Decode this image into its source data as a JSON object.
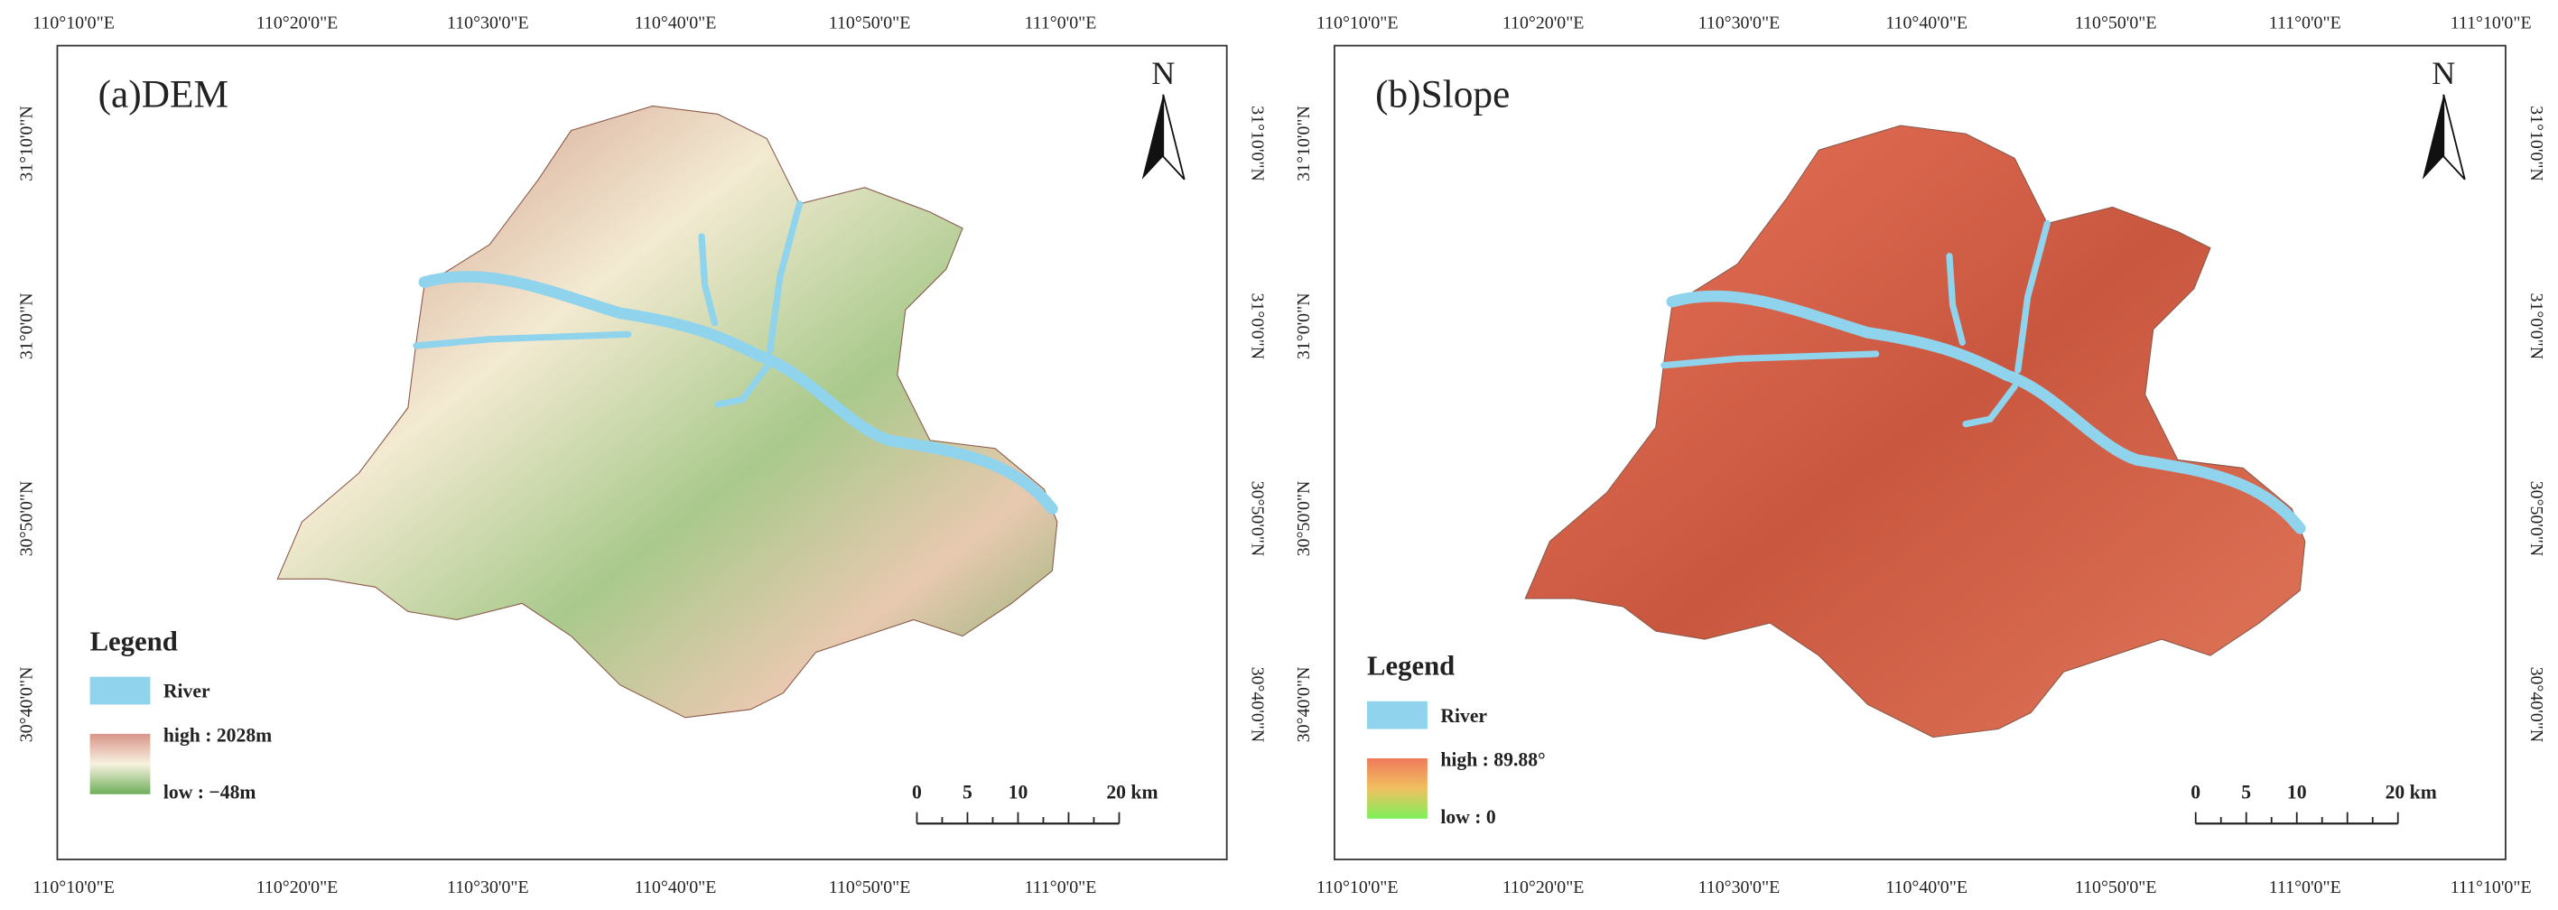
{
  "panels": [
    {
      "title": "(a)DEM",
      "top_labels": [
        "110°10'0\"E",
        "110°20'0\"E",
        "110°30'0\"E",
        "110°40'0\"E",
        "110°50'0\"E",
        "111°0'0\"E"
      ],
      "bottom_labels": [
        "110°10'0\"E",
        "110°20'0\"E",
        "110°30'0\"E",
        "110°40'0\"E",
        "110°50'0\"E",
        "111°0'0\"E"
      ],
      "left_labels": [
        "31°10'0\"N",
        "31°0'0\"N",
        "30°50'0\"N",
        "30°40'0\"N"
      ],
      "right_labels": [
        "31°10'0\"N",
        "31°0'0\"N",
        "30°50'0\"N",
        "30°40'0\"N"
      ],
      "north": "N",
      "legend": {
        "title": "Legend",
        "river": "River",
        "high": "high : 2028m",
        "low": "low : −48m"
      },
      "scale": [
        "0",
        "5",
        "10",
        "20 km"
      ]
    },
    {
      "title": "(b)Slope",
      "top_labels": [
        "110°10'0\"E",
        "110°20'0\"E",
        "110°30'0\"E",
        "110°40'0\"E",
        "110°50'0\"E",
        "111°0'0\"E",
        "111°10'0\"E"
      ],
      "bottom_labels": [
        "110°10'0\"E",
        "110°20'0\"E",
        "110°30'0\"E",
        "110°40'0\"E",
        "110°50'0\"E",
        "111°0'0\"E",
        "111°10'0\"E"
      ],
      "left_labels": [
        "31°10'0\"N",
        "31°0'0\"N",
        "30°50'0\"N",
        "30°40'0\"N"
      ],
      "right_labels": [
        "31°10'0\"N",
        "31°0'0\"N",
        "30°50'0\"N",
        "30°40'0\"N"
      ],
      "north": "N",
      "legend": {
        "title": "Legend",
        "river": "River",
        "high": "high : 89.88°",
        "low": "low : 0"
      },
      "scale": [
        "0",
        "5",
        "10",
        "20 km"
      ]
    }
  ]
}
